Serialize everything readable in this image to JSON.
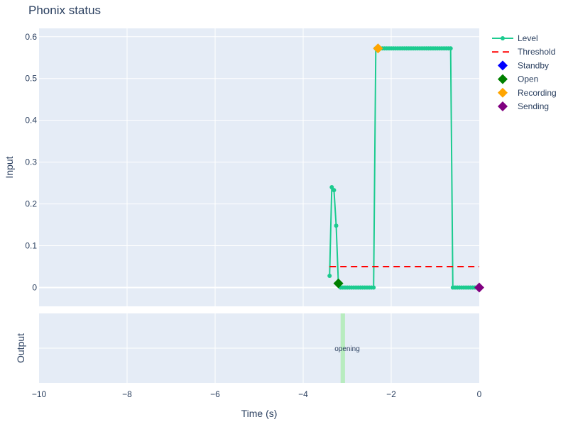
{
  "chart_data": {
    "type": "line",
    "title": "Phonix status",
    "xlabel": "Time (s)",
    "x_ticks": [
      -10,
      -8,
      -6,
      -4,
      -2,
      0
    ],
    "x_tick_labels": [
      "−10",
      "−8",
      "−6",
      "−4",
      "−2",
      "0"
    ],
    "xlim": [
      -10,
      0
    ],
    "top_panel": {
      "ylabel": "Input",
      "ylim": [
        -0.045,
        0.62
      ],
      "y_ticks": [
        0,
        0.1,
        0.2,
        0.3,
        0.4,
        0.5,
        0.6
      ],
      "y_tick_labels": [
        "0",
        "0.1",
        "0.2",
        "0.3",
        "0.4",
        "0.5",
        "0.6"
      ],
      "grid": true
    },
    "bottom_panel": {
      "ylabel": "Output",
      "grid": true,
      "span": {
        "x0": -3.15,
        "x1": -3.05,
        "color": "#b8ecbf"
      },
      "annotation": {
        "text": "opening",
        "x": -3.0
      }
    },
    "series": [
      {
        "name": "Level",
        "mode": "lines+markers",
        "color": "#1ccb8f",
        "x": [
          -3.4,
          -3.35,
          -3.3,
          -3.25,
          -3.2,
          -3.15,
          -3.1,
          -3.05,
          -3.0,
          -2.95,
          -2.9,
          -2.85,
          -2.8,
          -2.75,
          -2.7,
          -2.65,
          -2.6,
          -2.55,
          -2.5,
          -2.45,
          -2.4,
          -2.35,
          -2.3,
          -2.25,
          -2.2,
          -2.15,
          -2.1,
          -2.05,
          -2.0,
          -1.95,
          -1.9,
          -1.85,
          -1.8,
          -1.75,
          -1.7,
          -1.65,
          -1.6,
          -1.55,
          -1.5,
          -1.45,
          -1.4,
          -1.35,
          -1.3,
          -1.25,
          -1.2,
          -1.15,
          -1.1,
          -1.05,
          -1.0,
          -0.95,
          -0.9,
          -0.85,
          -0.8,
          -0.75,
          -0.7,
          -0.65,
          -0.6,
          -0.55,
          -0.5,
          -0.45,
          -0.4,
          -0.35,
          -0.3,
          -0.25,
          -0.2,
          -0.15,
          -0.1,
          -0.05,
          0.0
        ],
        "y": [
          0.028,
          0.24,
          0.233,
          0.148,
          0.01,
          0.0,
          0.0,
          0.0,
          0.0,
          0.0,
          0.0,
          0.0,
          0.0,
          0.0,
          0.0,
          0.0,
          0.0,
          0.0,
          0.0,
          0.0,
          0.0,
          0.572,
          0.572,
          0.572,
          0.572,
          0.572,
          0.572,
          0.572,
          0.572,
          0.572,
          0.572,
          0.572,
          0.572,
          0.572,
          0.572,
          0.572,
          0.572,
          0.572,
          0.572,
          0.572,
          0.572,
          0.572,
          0.572,
          0.572,
          0.572,
          0.572,
          0.572,
          0.572,
          0.572,
          0.572,
          0.572,
          0.572,
          0.572,
          0.572,
          0.572,
          0.572,
          0.0,
          0.0,
          0.0,
          0.0,
          0.0,
          0.0,
          0.0,
          0.0,
          0.0,
          0.0,
          0.0,
          0.0,
          0.0
        ]
      },
      {
        "name": "Threshold",
        "mode": "lines",
        "dash": "dash",
        "color": "#ff0000",
        "x": [
          -3.4,
          0.0
        ],
        "y": [
          0.05,
          0.05
        ]
      },
      {
        "name": "Standby",
        "mode": "markers",
        "marker": "diamond",
        "color": "#0000ff",
        "x": [],
        "y": []
      },
      {
        "name": "Open",
        "mode": "markers",
        "marker": "diamond",
        "color": "#008000",
        "x": [
          -3.2
        ],
        "y": [
          0.01
        ]
      },
      {
        "name": "Recording",
        "mode": "markers",
        "marker": "diamond",
        "color": "#ffa500",
        "x": [
          -2.3
        ],
        "y": [
          0.572
        ]
      },
      {
        "name": "Sending",
        "mode": "markers",
        "marker": "diamond",
        "color": "#800080",
        "x": [
          0.0
        ],
        "y": [
          0.0
        ]
      }
    ],
    "legend": {
      "placement": "top-right-outside",
      "entries": [
        "Level",
        "Threshold",
        "Standby",
        "Open",
        "Recording",
        "Sending"
      ]
    }
  }
}
